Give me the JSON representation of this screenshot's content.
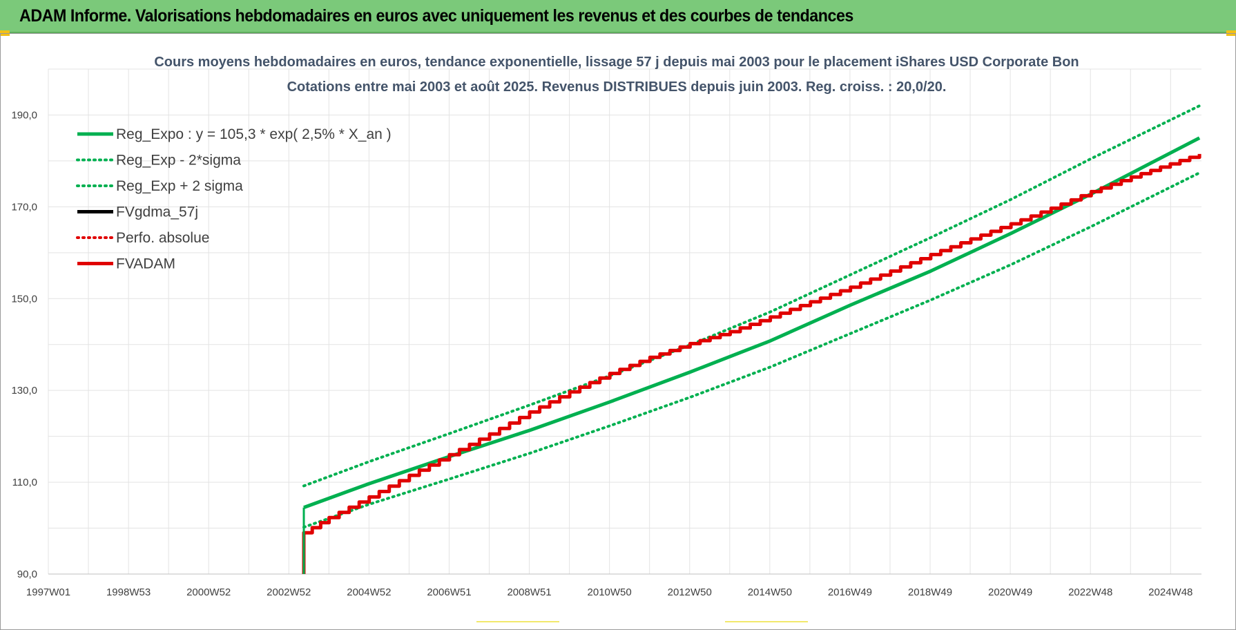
{
  "header": {
    "title": "ADAM Informe. Valorisations hebdomadaires en euros avec uniquement les revenus et des courbes de tendances"
  },
  "colors": {
    "header_bg": "#7bc97a",
    "green": "#00b050",
    "red": "#e00000",
    "black": "#000000",
    "title_text": "#44546a"
  },
  "chart_data": {
    "type": "line",
    "title_line1": "Cours moyens hebdomadaires en euros, tendance exponentielle, lissage 57 j depuis mai 2003 pour le placement iShares USD Corporate Bon",
    "title_line2": "Cotations entre mai 2003 et août 2025. Revenus DISTRIBUES depuis juin 2003. Reg. croiss. : 20,0/20.",
    "x_tick_labels": [
      "1997W01",
      "1998W53",
      "2000W52",
      "2002W52",
      "2004W52",
      "2006W51",
      "2008W51",
      "2010W50",
      "2012W50",
      "2014W50",
      "2016W49",
      "2018W49",
      "2020W49",
      "2022W48",
      "2024W48"
    ],
    "x_range_years": [
      1997.0,
      2025.75
    ],
    "y_range": [
      90,
      200
    ],
    "y_ticks": [
      90,
      110,
      130,
      150,
      170,
      190
    ],
    "y_tick_labels": [
      "90,0",
      "110,0",
      "130,0",
      "150,0",
      "170,0",
      "190,0"
    ],
    "grid": true,
    "legend_position": "top-left",
    "legend": [
      {
        "label": "Reg_Expo : y = 105,3 * exp( 2,5% *  X_an )",
        "color": "#00b050",
        "style": "solid"
      },
      {
        "label": "Reg_Exp - 2*sigma",
        "color": "#00b050",
        "style": "dotted"
      },
      {
        "label": "Reg_Exp + 2 sigma",
        "color": "#00b050",
        "style": "dotted"
      },
      {
        "label": "FVgdma_57j",
        "color": "#000000",
        "style": "solid"
      },
      {
        "label": "Perfo. absolue",
        "color": "#e00000",
        "style": "dotted"
      },
      {
        "label": "FVADAM",
        "color": "#e00000",
        "style": "solid"
      }
    ],
    "series": [
      {
        "name": "Reg_Expo : y = 105,3 * exp( 2,5% *  X_an )",
        "x": [
          2003.37,
          2005.0,
          2007.0,
          2009.0,
          2011.0,
          2013.0,
          2015.0,
          2017.0,
          2019.0,
          2021.0,
          2023.0,
          2025.7
        ],
        "y": [
          104.5,
          109.7,
          115.6,
          121.3,
          127.5,
          134.0,
          140.8,
          148.6,
          156.0,
          164.2,
          172.8,
          185.0
        ]
      },
      {
        "name": "Reg_Exp - 2*sigma",
        "x": [
          2003.37,
          2005.0,
          2007.0,
          2009.0,
          2011.0,
          2013.0,
          2015.0,
          2017.0,
          2019.0,
          2021.0,
          2023.0,
          2025.7
        ],
        "y": [
          100.2,
          105.2,
          110.7,
          116.3,
          122.3,
          128.5,
          135.1,
          142.4,
          149.7,
          157.4,
          165.7,
          177.4
        ]
      },
      {
        "name": "Reg_Exp + 2 sigma",
        "x": [
          2003.37,
          2005.0,
          2007.0,
          2009.0,
          2011.0,
          2013.0,
          2015.0,
          2017.0,
          2019.0,
          2021.0,
          2023.0,
          2025.7
        ],
        "y": [
          109.2,
          114.5,
          120.6,
          126.8,
          133.2,
          139.9,
          147.1,
          155.2,
          163.3,
          171.6,
          180.5,
          192.0
        ]
      },
      {
        "name": "FVgdma_57j",
        "x": [],
        "y": []
      },
      {
        "name": "Perfo. absolue",
        "x": [],
        "y": []
      },
      {
        "name": "FVADAM",
        "x": [
          2003.37,
          2003.37,
          2004.0,
          2005.0,
          2006.0,
          2007.0,
          2008.0,
          2009.0,
          2010.0,
          2011.0,
          2012.0,
          2013.0,
          2014.0,
          2015.0,
          2016.0,
          2017.0,
          2018.0,
          2019.0,
          2020.0,
          2021.0,
          2022.0,
          2023.0,
          2024.0,
          2025.7
        ],
        "y": [
          90.0,
          99.0,
          102.3,
          106.8,
          111.5,
          116.0,
          120.5,
          125.3,
          129.7,
          133.7,
          137.2,
          140.2,
          142.8,
          146.0,
          149.3,
          152.5,
          156.0,
          159.6,
          163.0,
          166.3,
          169.7,
          173.3,
          176.5,
          181.5
        ]
      }
    ]
  }
}
